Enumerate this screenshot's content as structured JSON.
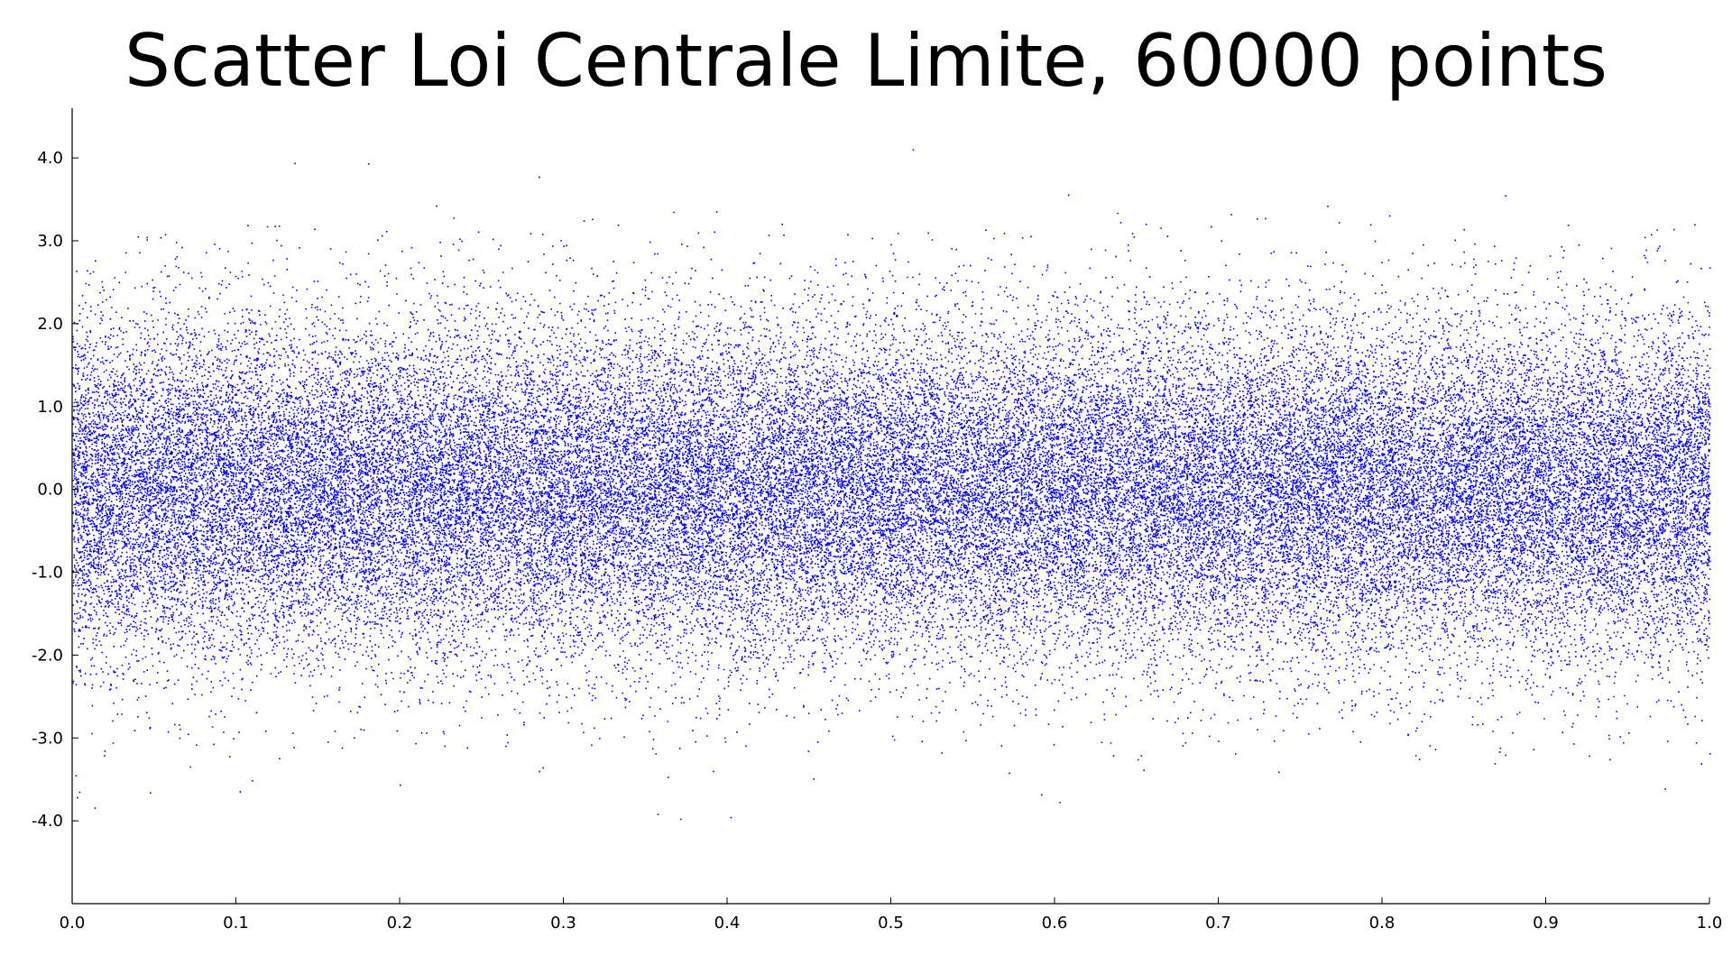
{
  "chart_data": {
    "type": "scatter",
    "title": "Scatter Loi Centrale Limite, 60000 points",
    "xlabel": "",
    "ylabel": "",
    "xlim": [
      0.0,
      1.0
    ],
    "ylim": [
      -5.0,
      4.6
    ],
    "x_ticks": [
      0.0,
      0.1,
      0.2,
      0.3,
      0.4,
      0.5,
      0.6,
      0.7,
      0.8,
      0.9,
      1.0
    ],
    "x_tick_labels": [
      "0.0",
      "0.1",
      "0.2",
      "0.3",
      "0.4",
      "0.5",
      "0.6",
      "0.7",
      "0.8",
      "0.9",
      "1.0"
    ],
    "y_ticks": [
      4.0,
      3.0,
      2.0,
      1.0,
      0.0,
      -1.0,
      -2.0,
      -3.0,
      -4.0
    ],
    "y_tick_labels": [
      "4.0",
      "3.0",
      "2.0",
      "1.0",
      "0.0",
      "-1.0",
      "-2.0",
      "-3.0",
      "-4.0"
    ],
    "grid": false,
    "legend": "none",
    "point_color": "#0000ff",
    "series": [
      {
        "n_points": 60000,
        "x_distribution": "uniform [0, 1]",
        "y_distribution": "normal (mean 0, std 1)"
      }
    ]
  }
}
